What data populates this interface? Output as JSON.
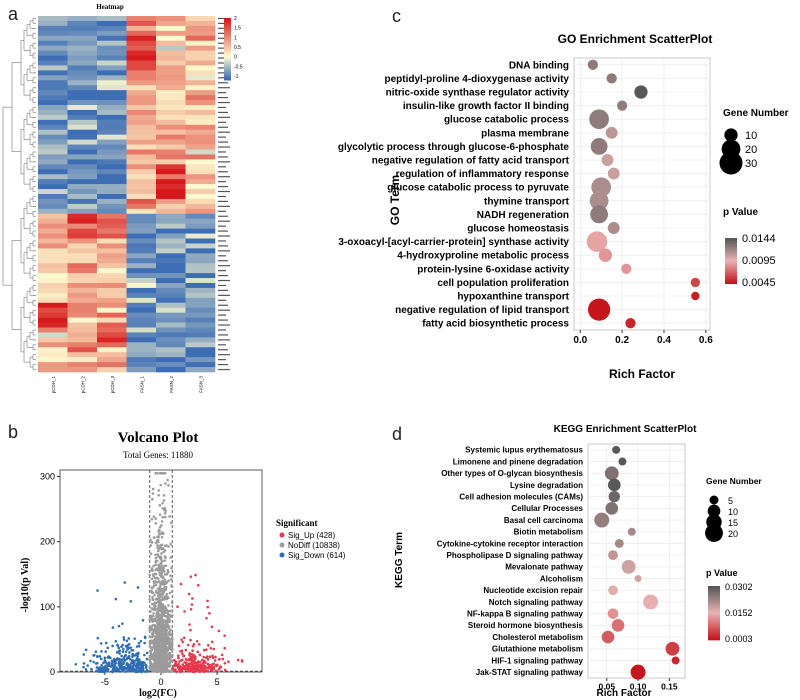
{
  "panel_labels": {
    "a": "a",
    "b": "b",
    "c": "c",
    "d": "d"
  },
  "chart_data": [
    {
      "type": "heatmap",
      "title": "Heatmap",
      "columns": [
        "pCDH_1",
        "pCDH_2",
        "pCDH_3",
        "FASN_1",
        "FASN_2",
        "FASN_3"
      ],
      "colorbar_ticks": [
        "2",
        "1.5",
        "1",
        "0.5",
        "0",
        "-0.5",
        "-1"
      ],
      "row_count": 72,
      "colors": {
        "low": "#3d6db5",
        "mid": "#fefbd0",
        "high": "#d7191c"
      }
    },
    {
      "type": "scatter",
      "title": "Volcano Plot",
      "subtitle": "Total Genes: 11880",
      "xlabel": "log2(FC)",
      "ylabel": "-log10(p Val)",
      "xlim": [
        -9,
        9
      ],
      "ylim": [
        0,
        310
      ],
      "xticks": [
        "-5",
        "0",
        "5"
      ],
      "yticks": [
        "0",
        "100",
        "200",
        "300"
      ],
      "threshold_fc": 1,
      "legend_title": "Significant",
      "series": [
        {
          "name": "Sig_Up (428)",
          "color": "#e6394c",
          "count": 428
        },
        {
          "name": "NoDiff (10838)",
          "color": "#9b9b9b",
          "count": 10838
        },
        {
          "name": "Sig_Down (614)",
          "color": "#2f6db3",
          "count": 614
        }
      ]
    },
    {
      "type": "scatter",
      "title": "GO Enrichment ScatterPlot",
      "xlabel": "Rich Factor",
      "ylabel": "GO Term",
      "xlim": [
        -0.03,
        0.62
      ],
      "xticks": [
        "0.0",
        "0.2",
        "0.4",
        "0.6"
      ],
      "size_legend_title": "Gene Number",
      "size_legend": [
        "10",
        "20",
        "30"
      ],
      "color_legend_title": "p Value",
      "color_legend": [
        "0.0144",
        "0.0095",
        "0.0045"
      ],
      "terms": [
        "DNA binding",
        "peptidyl-proline 4-dioxygenase activity",
        "nitric-oxide synthase regulator activity",
        "insulin-like growth factor II binding",
        "glucose catabolic process",
        "plasma membrane",
        "glycolytic process through glucose-6-phosphate",
        "negative regulation of fatty acid transport",
        "regulation of inflammatory response",
        "glucose catabolic process to pyruvate",
        "thymine transport",
        "NADH regeneration",
        "glucose homeostasis",
        "3-oxoacyl-[acyl-carrier-protein] synthase activity",
        "4-hydroxyproline metabolic process",
        "protein-lysine 6-oxidase activity",
        "cell population proliferation",
        "hypoxanthine transport",
        "negative regulation of lipid transport",
        "fatty acid biosynthetic process"
      ],
      "rich_factor": [
        0.06,
        0.15,
        0.29,
        0.2,
        0.09,
        0.15,
        0.09,
        0.13,
        0.16,
        0.1,
        0.09,
        0.09,
        0.16,
        0.08,
        0.12,
        0.22,
        0.55,
        0.55,
        0.09,
        0.24
      ],
      "gene_number": [
        6,
        6,
        10,
        6,
        22,
        8,
        16,
        8,
        8,
        22,
        20,
        18,
        8,
        24,
        10,
        6,
        5,
        4,
        28,
        6
      ],
      "p_value": [
        0.0125,
        0.0125,
        0.0144,
        0.0125,
        0.0125,
        0.011,
        0.0125,
        0.0105,
        0.0105,
        0.0115,
        0.0115,
        0.0125,
        0.0115,
        0.009,
        0.0085,
        0.0085,
        0.006,
        0.0048,
        0.0045,
        0.005
      ],
      "p_range": [
        0.0045,
        0.0144
      ]
    },
    {
      "type": "scatter",
      "title": "KEGG Enrichment ScatterPlot",
      "xlabel": "Rich Factor",
      "ylabel": "KEGG Term",
      "xlim": [
        0.02,
        0.175
      ],
      "xticks": [
        "0.05",
        "0.10",
        "0.15"
      ],
      "size_legend_title": "Gene Number",
      "size_legend": [
        "5",
        "10",
        "15",
        "20"
      ],
      "color_legend_title": "p Value",
      "color_legend": [
        "0.0302",
        "0.0152",
        "0.0003"
      ],
      "terms": [
        "Systemic lupus erythematosus",
        "Limonene and pinene degradation",
        "Other types of O-glycan biosynthesis",
        "Lysine degradation",
        "Cell adhesion molecules (CAMs)",
        "Cellular Processes",
        "Basal cell carcinoma",
        "Biotin metabolism",
        "Cytokine-cytokine receptor interaction",
        "Phospholipase D signaling pathway",
        "Mevalonate pathway",
        "Alcoholism",
        "Nucleotide excision repair",
        "Notch signaling pathway",
        "NF-kappa B signaling pathway",
        "Steroid hormone biosynthesis",
        "Cholesterol metabolism",
        "Glutathione metabolism",
        "HIF-1 signaling pathway",
        "Jak-STAT signaling pathway"
      ],
      "rich_factor": [
        0.065,
        0.075,
        0.058,
        0.062,
        0.062,
        0.058,
        0.042,
        0.09,
        0.07,
        0.06,
        0.085,
        0.1,
        0.06,
        0.12,
        0.06,
        0.068,
        0.052,
        0.155,
        0.16,
        0.1
      ],
      "gene_number": [
        4,
        4,
        12,
        10,
        8,
        10,
        14,
        4,
        5,
        6,
        12,
        3,
        6,
        14,
        7,
        10,
        10,
        12,
        4,
        14
      ],
      "p_value": [
        0.0302,
        0.0302,
        0.026,
        0.03,
        0.028,
        0.026,
        0.024,
        0.022,
        0.022,
        0.02,
        0.018,
        0.018,
        0.016,
        0.015,
        0.012,
        0.009,
        0.007,
        0.004,
        0.002,
        0.0003
      ],
      "p_range": [
        0.0003,
        0.0302
      ]
    }
  ]
}
